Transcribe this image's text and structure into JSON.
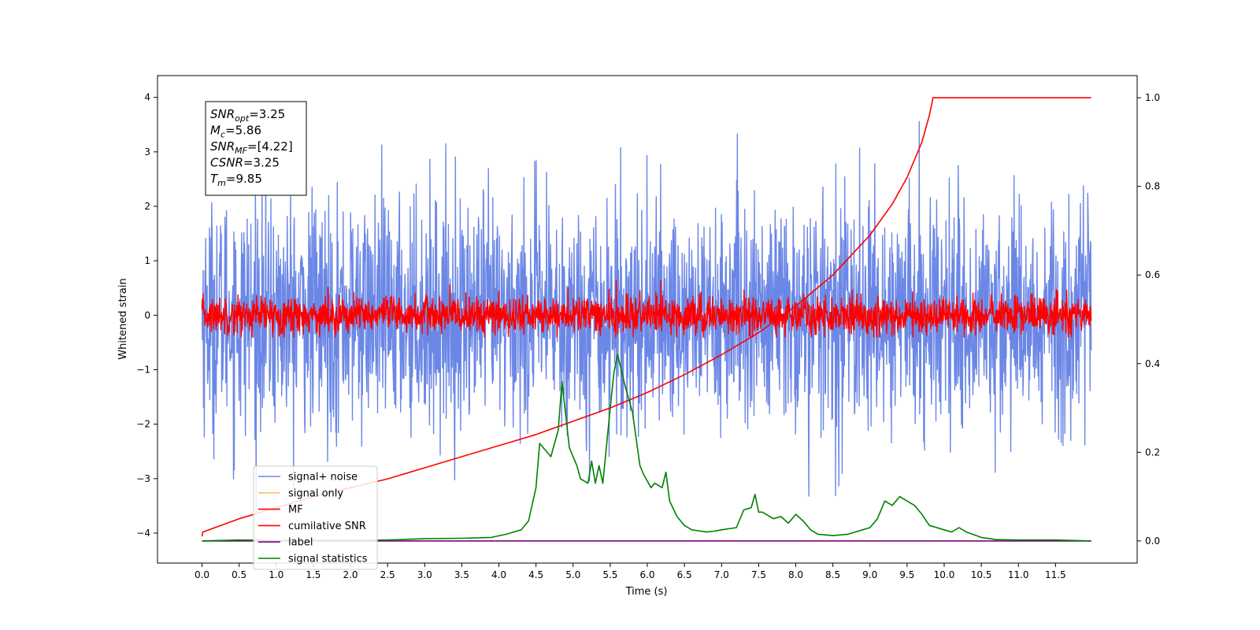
{
  "chart_data": {
    "type": "line",
    "xlabel": "Time (s)",
    "ylabel": "Whitened strain",
    "xlim": [
      -0.6,
      12.6
    ],
    "ylim_left": [
      -4.55,
      4.4
    ],
    "ylim_right": [
      -0.05,
      1.05
    ],
    "x_ticks": [
      0.0,
      0.5,
      1.0,
      1.5,
      2.0,
      2.5,
      3.0,
      3.5,
      4.0,
      4.5,
      5.0,
      5.5,
      6.0,
      6.5,
      7.0,
      7.5,
      8.0,
      8.5,
      9.0,
      9.5,
      10.0,
      10.5,
      11.0,
      11.5
    ],
    "x_tick_labels": [
      "0.0",
      "0.5",
      "1.0",
      "1.5",
      "2.0",
      "2.5",
      "3.0",
      "3.5",
      "4.0",
      "4.5",
      "5.0",
      "5.5",
      "6.0",
      "6.5",
      "7.0",
      "7.5",
      "8.0",
      "8.5",
      "9.0",
      "9.5",
      "10.0",
      "10.5",
      "11.0",
      "11.5"
    ],
    "y_left_ticks": [
      -4,
      -3,
      -2,
      -1,
      0,
      1,
      2,
      3,
      4
    ],
    "y_left_tick_labels": [
      "−4",
      "−3",
      "−2",
      "−1",
      "0",
      "1",
      "2",
      "3",
      "4"
    ],
    "y_right_ticks": [
      0.0,
      0.2,
      0.4,
      0.6,
      0.8,
      1.0
    ],
    "y_right_tick_labels": [
      "0.0",
      "0.2",
      "0.4",
      "0.6",
      "0.8",
      "1.0"
    ],
    "legend_position": "lower-left",
    "legend": [
      {
        "label": "signal+ noise",
        "color": "#6b87e6"
      },
      {
        "label": "signal only",
        "color": "#ffbf60"
      },
      {
        "label": "MF",
        "color": "#ff0000"
      },
      {
        "label": "cumilative SNR",
        "color": "#ff0000"
      },
      {
        "label": "label",
        "color": "#800080"
      },
      {
        "label": "signal statistics",
        "color": "#008000"
      }
    ],
    "annotation_box": [
      {
        "label_html": "<tspan font-style='italic'>SNR</tspan><tspan font-style='italic' font-size='11' dy='4'>opt</tspan><tspan dy='-4'>=3.25</tspan>"
      },
      {
        "label_html": "<tspan font-style='italic'>M</tspan><tspan font-style='italic' font-size='11' dy='4'>c</tspan><tspan dy='-4'>=5.86</tspan>"
      },
      {
        "label_html": "<tspan font-style='italic'>SNR</tspan><tspan font-style='italic' font-size='11' dy='4'>MF</tspan><tspan dy='-4'>=[4.22]</tspan>"
      },
      {
        "label_html": "<tspan font-style='italic'>CSNR</tspan><tspan>=3.25</tspan>"
      },
      {
        "label_html": "<tspan font-style='italic'>T</tspan><tspan font-style='italic' font-size='11' dy='4'>m</tspan><tspan dy='-4'>=9.85</tspan>"
      }
    ],
    "annotation_text": [
      "SNR_opt=3.25",
      "M_c=5.86",
      "SNR_MF=[4.22]",
      "CSNR=3.25",
      "T_m=9.85"
    ],
    "series": [
      {
        "name": "signal+ noise",
        "axis": "left",
        "color": "#6b87e6",
        "noise": {
          "t_start": 0.0,
          "t_end": 11.98,
          "sigma": 1.05,
          "clip": [
            -4.1,
            4.0
          ]
        }
      },
      {
        "name": "MF",
        "axis": "left",
        "color": "#ff0000",
        "noise": {
          "t_start": 0.0,
          "t_end": 11.98,
          "sigma": 0.17,
          "clip": [
            -0.4,
            1.0
          ]
        }
      },
      {
        "name": "cumilative SNR",
        "axis": "right",
        "color": "#ff0000",
        "x": [
          0.0,
          0.01,
          0.5,
          1.0,
          1.5,
          2.0,
          2.5,
          3.0,
          3.5,
          4.0,
          4.5,
          5.0,
          5.5,
          6.0,
          6.5,
          7.0,
          7.5,
          8.0,
          8.5,
          9.0,
          9.3,
          9.5,
          9.7,
          9.8,
          9.85,
          11.98
        ],
        "y": [
          0.01,
          0.02,
          0.05,
          0.075,
          0.1,
          0.12,
          0.14,
          0.165,
          0.19,
          0.215,
          0.24,
          0.27,
          0.3,
          0.335,
          0.375,
          0.42,
          0.47,
          0.53,
          0.6,
          0.69,
          0.76,
          0.82,
          0.9,
          0.96,
          1.0,
          1.0
        ]
      },
      {
        "name": "label",
        "axis": "right",
        "color": "#800080",
        "x": [
          0.0,
          11.98
        ],
        "y": [
          0.0,
          0.0
        ]
      },
      {
        "name": "signal statistics",
        "axis": "right",
        "color": "#008000",
        "x": [
          0.0,
          0.5,
          1.0,
          2.0,
          2.5,
          3.0,
          3.5,
          3.9,
          4.1,
          4.2,
          4.3,
          4.4,
          4.5,
          4.55,
          4.7,
          4.8,
          4.85,
          4.95,
          5.05,
          5.1,
          5.2,
          5.25,
          5.3,
          5.35,
          5.4,
          5.5,
          5.55,
          5.6,
          5.7,
          5.8,
          5.9,
          5.95,
          6.05,
          6.1,
          6.2,
          6.25,
          6.3,
          6.4,
          6.5,
          6.6,
          6.8,
          6.9,
          7.0,
          7.2,
          7.3,
          7.4,
          7.45,
          7.5,
          7.55,
          7.7,
          7.8,
          7.9,
          8.0,
          8.1,
          8.2,
          8.3,
          8.5,
          8.7,
          8.8,
          8.9,
          9.0,
          9.1,
          9.2,
          9.3,
          9.4,
          9.5,
          9.6,
          9.7,
          9.8,
          10.0,
          10.1,
          10.2,
          10.3,
          10.5,
          10.7,
          11.0,
          11.5,
          11.98
        ],
        "y": [
          0.0,
          0.002,
          0.001,
          0.001,
          0.002,
          0.005,
          0.006,
          0.008,
          0.015,
          0.02,
          0.025,
          0.045,
          0.12,
          0.22,
          0.19,
          0.25,
          0.36,
          0.21,
          0.17,
          0.14,
          0.13,
          0.18,
          0.13,
          0.17,
          0.13,
          0.3,
          0.38,
          0.42,
          0.35,
          0.29,
          0.17,
          0.15,
          0.12,
          0.13,
          0.12,
          0.155,
          0.09,
          0.055,
          0.035,
          0.025,
          0.02,
          0.022,
          0.025,
          0.03,
          0.07,
          0.075,
          0.105,
          0.065,
          0.065,
          0.05,
          0.055,
          0.04,
          0.06,
          0.045,
          0.025,
          0.015,
          0.012,
          0.015,
          0.02,
          0.025,
          0.03,
          0.05,
          0.09,
          0.08,
          0.1,
          0.09,
          0.08,
          0.06,
          0.035,
          0.025,
          0.02,
          0.03,
          0.02,
          0.008,
          0.003,
          0.002,
          0.002,
          0.0
        ]
      }
    ]
  }
}
